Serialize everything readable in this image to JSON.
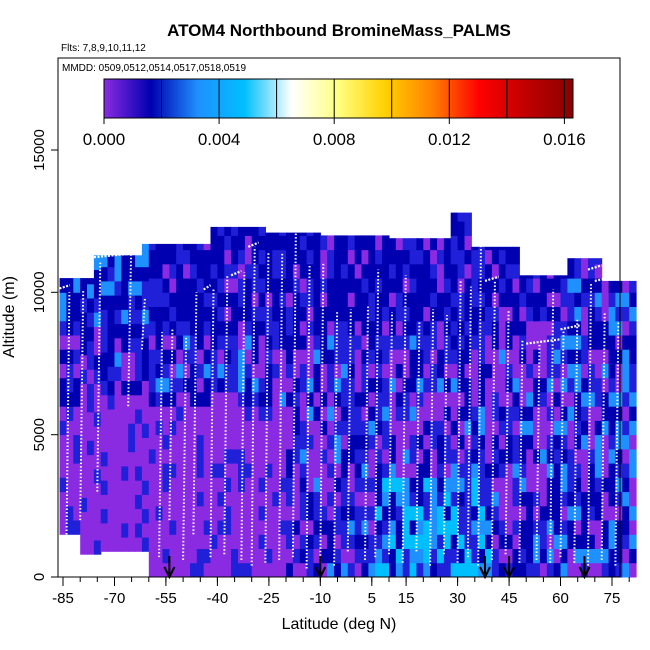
{
  "chart_data": {
    "type": "heatmap",
    "title": "ATOM4 Northbound BromineMass_PALMS",
    "flights_note": "Flts: 7,8,9,10,11,12",
    "dates_note": "MMDD: 0509,0512,0514,0517,0518,0519",
    "xlabel": "Latitude (deg N)",
    "ylabel": "Altitude (m)",
    "xlim": [
      -87,
      83
    ],
    "ylim": [
      0,
      17000
    ],
    "x_ticks": [
      -85,
      -70,
      -55,
      -40,
      -25,
      -10,
      5,
      15,
      30,
      45,
      60,
      75
    ],
    "x_tick_labels": [
      "-85",
      "-70",
      "-55",
      "-40",
      "-25",
      "-10",
      "5",
      "15",
      "30",
      "45",
      "60",
      "75"
    ],
    "y_ticks": [
      0,
      5000,
      10000,
      15000
    ],
    "y_tick_labels": [
      "0",
      "5000",
      "10000",
      "15000"
    ],
    "colorbar": {
      "range": [
        0,
        0.0163
      ],
      "ticks": [
        0.0,
        0.004,
        0.008,
        0.012,
        0.016
      ],
      "tick_labels": [
        "0.000",
        "0.004",
        "0.008",
        "0.012",
        "0.016"
      ],
      "colors": [
        "#8a2be2",
        "#0000b0",
        "#1e90ff",
        "#00bfff",
        "#ffffff",
        "#ffff80",
        "#ffd000",
        "#ff8000",
        "#ff0000",
        "#c00000",
        "#8b0000"
      ]
    },
    "arrow_latitudes": [
      -54,
      -10,
      38,
      45,
      67
    ],
    "colors": {
      "purple": "#8a2be2",
      "darkblue": "#0000b0",
      "midblue": "#2020d8",
      "lightblue": "#1e90ff",
      "cyan": "#00bfff",
      "profile_line": "#ffffff"
    }
  }
}
